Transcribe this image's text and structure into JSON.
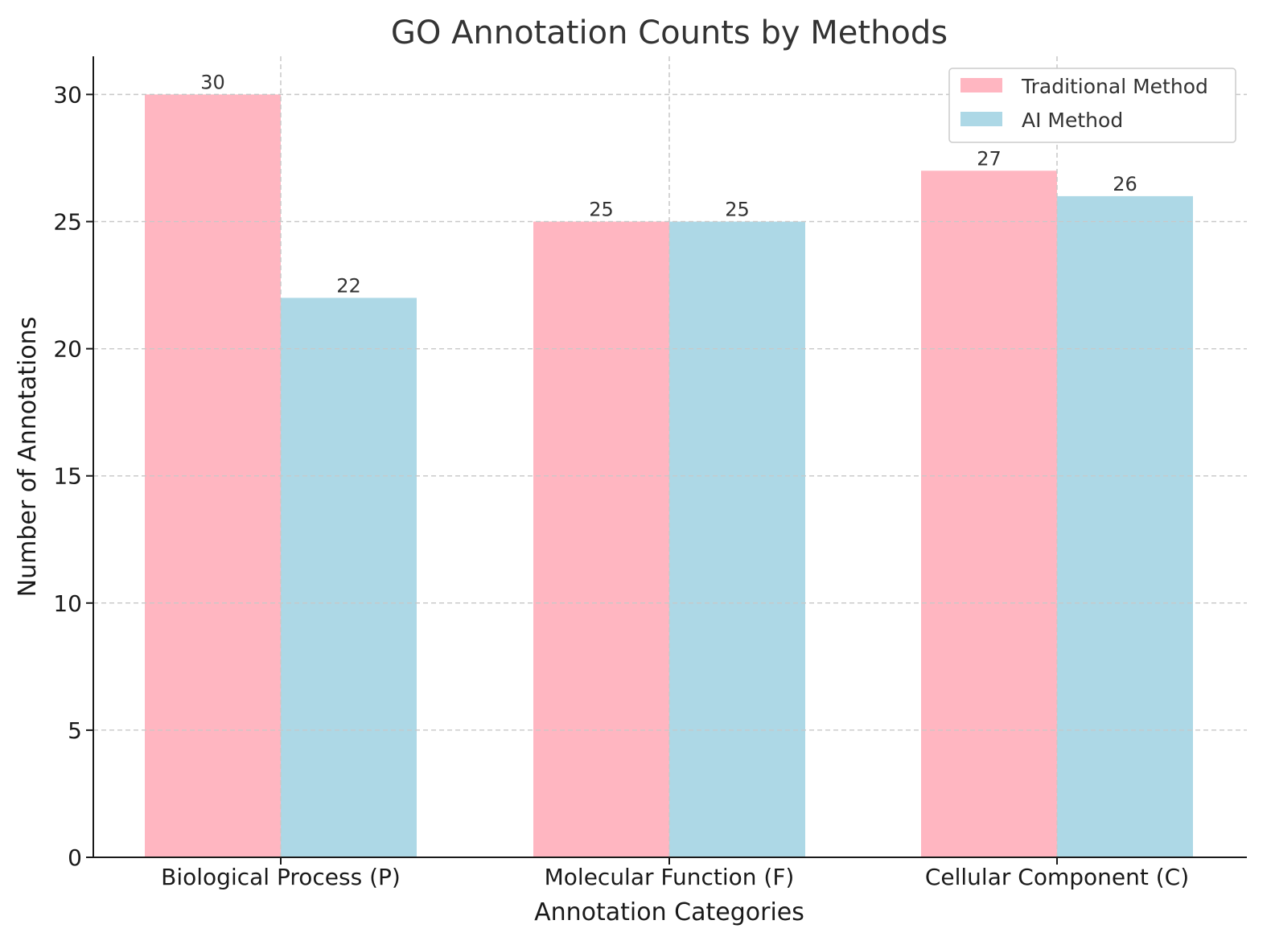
{
  "chart_data": {
    "type": "bar",
    "title": "GO Annotation Counts by Methods",
    "xlabel": "Annotation Categories",
    "ylabel": "Number of Annotations",
    "categories": [
      "Biological Process (P)",
      "Molecular Function (F)",
      "Cellular Component (C)"
    ],
    "series": [
      {
        "name": "Traditional Method",
        "color": "#ffb6c1",
        "values": [
          30,
          25,
          27
        ]
      },
      {
        "name": "AI Method",
        "color": "#add8e6",
        "values": [
          22,
          25,
          26
        ]
      }
    ],
    "ylim": [
      0,
      31.5
    ],
    "yticks": [
      0,
      5,
      10,
      15,
      20,
      25,
      30
    ],
    "grid": true,
    "legend_position": "top-right"
  }
}
